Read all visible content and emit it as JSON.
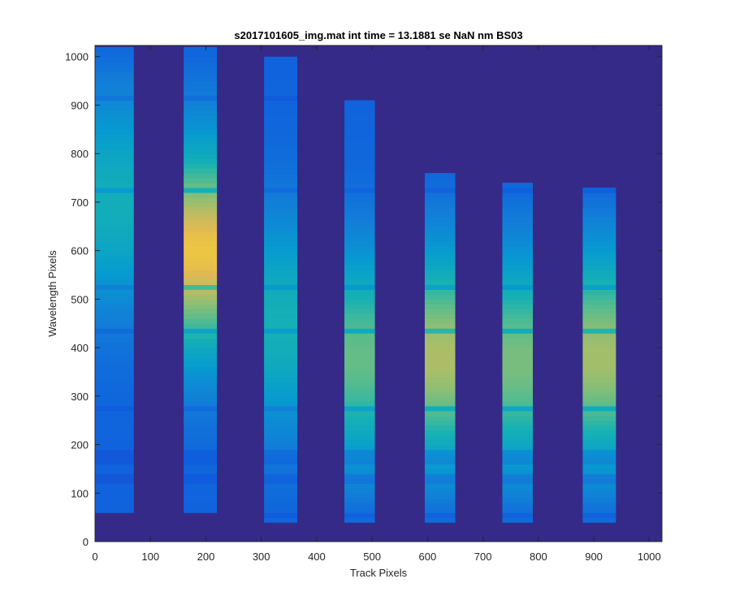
{
  "chart_data": {
    "type": "heatmap",
    "title": "s2017101605_img.mat int time = 13.1881 se  NaN nm BS03",
    "xlabel": "Track Pixels",
    "ylabel": "Wavelength Pixels",
    "xlim": [
      0,
      1023
    ],
    "ylim": [
      0,
      1023
    ],
    "xticks": [
      0,
      100,
      200,
      300,
      400,
      500,
      600,
      700,
      800,
      900,
      1000
    ],
    "yticks": [
      0,
      100,
      200,
      300,
      400,
      500,
      600,
      700,
      800,
      900,
      1000
    ],
    "grid": false,
    "colormap": "parula",
    "colors": {
      "background": "#352a87",
      "low": "#0f5cdd",
      "mid": "#14a2c2",
      "high": "#a5be6a",
      "peak": "#f9d72e"
    },
    "traces": [
      {
        "track_range": [
          0,
          70
        ],
        "wavelength_range": [
          60,
          1020
        ],
        "peak_wavelength": 700,
        "peak_level": 0.48
      },
      {
        "track_range": [
          160,
          220
        ],
        "wavelength_range": [
          60,
          1020
        ],
        "peak_wavelength": 600,
        "peak_level": 0.95
      },
      {
        "track_range": [
          305,
          365
        ],
        "wavelength_range": [
          40,
          1000
        ],
        "peak_wavelength": 450,
        "peak_level": 0.5
      },
      {
        "track_range": [
          450,
          505
        ],
        "wavelength_range": [
          40,
          910
        ],
        "peak_wavelength": 380,
        "peak_level": 0.68
      },
      {
        "track_range": [
          595,
          650
        ],
        "wavelength_range": [
          40,
          760
        ],
        "peak_wavelength": 380,
        "peak_level": 0.82
      },
      {
        "track_range": [
          735,
          790
        ],
        "wavelength_range": [
          40,
          740
        ],
        "peak_wavelength": 370,
        "peak_level": 0.72
      },
      {
        "track_range": [
          880,
          940
        ],
        "wavelength_range": [
          40,
          730
        ],
        "peak_wavelength": 380,
        "peak_level": 0.8
      }
    ],
    "absorption_lines": [
      55,
      130,
      165,
      180,
      275,
      435,
      525,
      725,
      915
    ]
  }
}
